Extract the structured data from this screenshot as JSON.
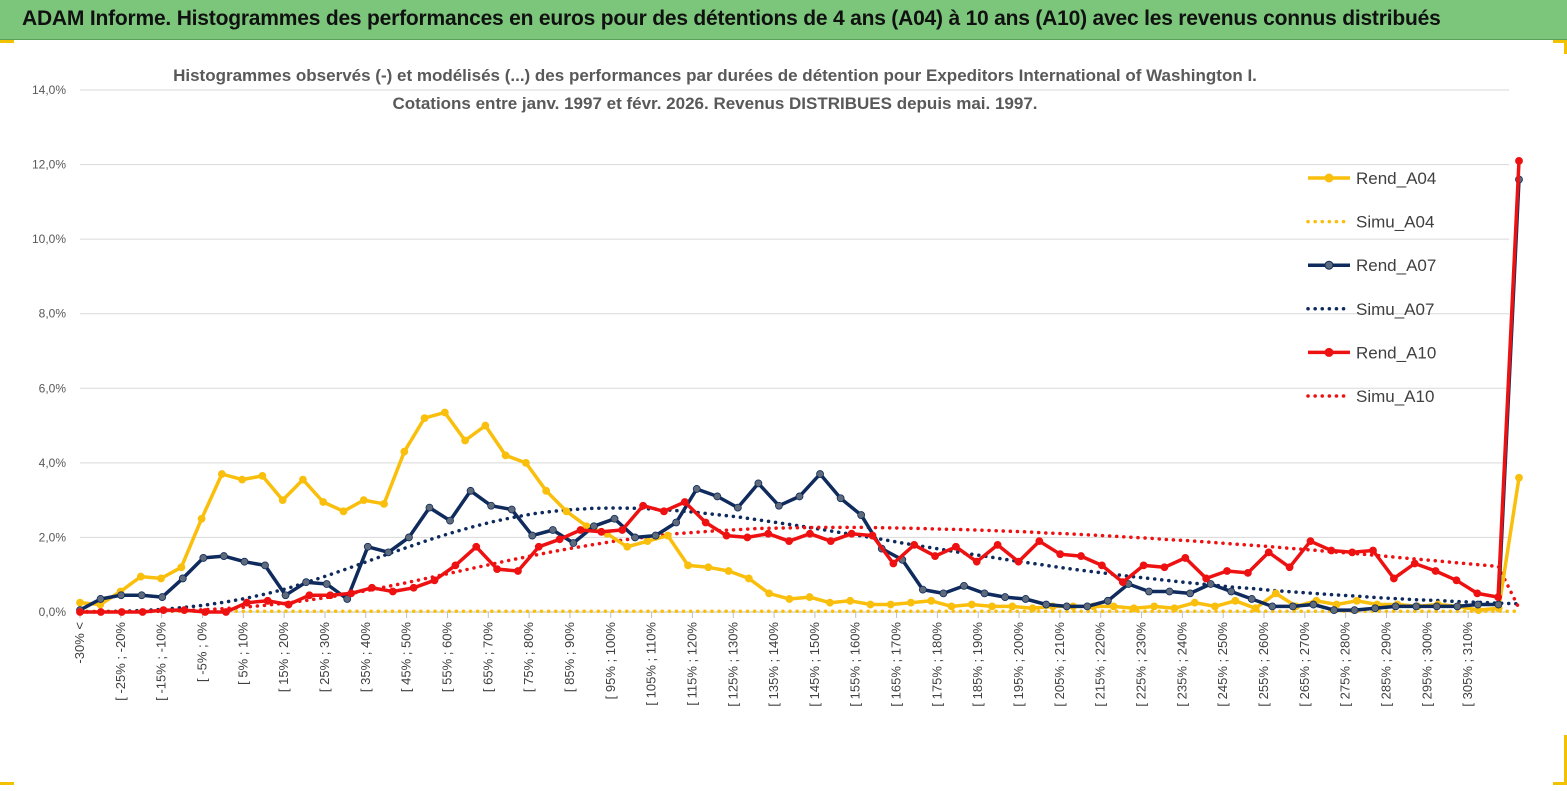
{
  "banner": {
    "title": "ADAM Informe. Histogrammes des performances en euros pour des détentions de 4 ans (A04) à 10 ans (A10) avec les revenus connus distribués"
  },
  "colors": {
    "banner_bg": "#7bc67b",
    "a04": "#f9bf0c",
    "a07": "#0f2a5c",
    "a10": "#ee1111",
    "marker_a07": "#5f6b7a"
  },
  "chart_data": {
    "type": "line",
    "title": "Histogrammes observés (-) et modélisés (...) des performances par durées de détention pour Expeditors International of Washington I.",
    "subtitle": "Cotations entre janv. 1997 et févr. 2026. Revenus DISTRIBUES depuis mai. 1997.",
    "xlabel": "",
    "ylabel": "",
    "ylim": [
      0,
      14
    ],
    "yticks": [
      "0,0%",
      "2,0%",
      "4,0%",
      "6,0%",
      "8,0%",
      "10,0%",
      "12,0%",
      "14,0%"
    ],
    "xtick_labels": [
      "-30% <",
      "[ -25% ; -20%",
      "[ -15% ; -10%",
      "[ -5% ; 0%",
      "[ 5% ; 10%",
      "[ 15% ; 20%",
      "[ 25% ; 30%",
      "[ 35% ; 40%",
      "[ 45% ; 50%",
      "[ 55% ; 60%",
      "[ 65% ; 70%",
      "[ 75% ; 80%",
      "[ 85% ; 90%",
      "[ 95% ; 100%",
      "[ 105% ; 110%",
      "[ 115% ; 120%",
      "[ 125% ; 130%",
      "[ 135% ; 140%",
      "[ 145% ; 150%",
      "[ 155% ; 160%",
      "[ 165% ; 170%",
      "[ 175% ; 180%",
      "[ 185% ; 190%",
      "[ 195% ; 200%",
      "[ 205% ; 210%",
      "[ 215% ; 220%",
      "[ 225% ; 230%",
      "[ 235% ; 240%",
      "[ 245% ; 250%",
      "[ 255% ; 260%",
      "[ 265% ; 270%",
      "[ 275% ; 280%",
      "[ 285% ; 290%",
      "[ 295% ; 300%",
      "[ 305% ; 310%"
    ],
    "legend_position": "right",
    "series": [
      {
        "name": "Rend_A04",
        "style": "solid-marker",
        "color": "#f9bf0c",
        "values": [
          0.25,
          0.2,
          0.55,
          0.95,
          0.9,
          1.2,
          2.5,
          3.7,
          3.55,
          3.65,
          3.0,
          3.55,
          2.95,
          2.7,
          3.0,
          2.9,
          4.3,
          5.2,
          5.35,
          4.6,
          5.0,
          4.2,
          4.0,
          3.25,
          2.7,
          2.3,
          2.1,
          1.75,
          1.9,
          2.05,
          1.25,
          1.2,
          1.1,
          0.9,
          0.5,
          0.35,
          0.4,
          0.25,
          0.3,
          0.2,
          0.2,
          0.25,
          0.3,
          0.15,
          0.2,
          0.15,
          0.15,
          0.1,
          0.15,
          0.15,
          0.15,
          0.15,
          0.1,
          0.15,
          0.1,
          0.25,
          0.15,
          0.3,
          0.1,
          0.5,
          0.15,
          0.3,
          0.2,
          0.3,
          0.2,
          0.2,
          0.15,
          0.2,
          0.15,
          0.05,
          0.1,
          3.6
        ]
      },
      {
        "name": "Simu_A04",
        "style": "dotted",
        "color": "#f9bf0c",
        "values": [
          0.02,
          0.02,
          0.02,
          0.02,
          0.02,
          0.02,
          0.02,
          0.02,
          0.02,
          0.02,
          0.02,
          0.02,
          0.02,
          0.02,
          0.02,
          0.02,
          0.02,
          0.02,
          0.02,
          0.02,
          0.02,
          0.02,
          0.02,
          0.02,
          0.02,
          0.02,
          0.02,
          0.02,
          0.02,
          0.02,
          0.02,
          0.02,
          0.02,
          0.02,
          0.02,
          0.02,
          0.02,
          0.02,
          0.02,
          0.02,
          0.02,
          0.02,
          0.02,
          0.02,
          0.02,
          0.02,
          0.02,
          0.02,
          0.02,
          0.02,
          0.02,
          0.02,
          0.02,
          0.02,
          0.02,
          0.02,
          0.02,
          0.02,
          0.02,
          0.02,
          0.02,
          0.02,
          0.02,
          0.02,
          0.02,
          0.02,
          0.02,
          0.02,
          0.02,
          0.02,
          0.02,
          0.02
        ]
      },
      {
        "name": "Rend_A07",
        "style": "solid-marker",
        "color": "#0f2a5c",
        "values": [
          0.05,
          0.35,
          0.45,
          0.45,
          0.4,
          0.9,
          1.45,
          1.5,
          1.35,
          1.25,
          0.45,
          0.8,
          0.75,
          0.35,
          1.75,
          1.6,
          2.0,
          2.8,
          2.45,
          3.25,
          2.85,
          2.75,
          2.05,
          2.2,
          1.85,
          2.3,
          2.5,
          2.0,
          2.05,
          2.4,
          3.3,
          3.1,
          2.8,
          3.45,
          2.85,
          3.1,
          3.7,
          3.05,
          2.6,
          1.7,
          1.4,
          0.6,
          0.5,
          0.7,
          0.5,
          0.4,
          0.35,
          0.2,
          0.15,
          0.15,
          0.3,
          0.75,
          0.55,
          0.55,
          0.5,
          0.75,
          0.55,
          0.35,
          0.15,
          0.15,
          0.2,
          0.05,
          0.05,
          0.1,
          0.15,
          0.15,
          0.15,
          0.15,
          0.2,
          0.2,
          11.6
        ]
      },
      {
        "name": "Simu_A07",
        "style": "dotted",
        "color": "#0f2a5c",
        "values": [
          0.0,
          0.01,
          0.02,
          0.04,
          0.07,
          0.12,
          0.18,
          0.26,
          0.36,
          0.48,
          0.62,
          0.79,
          0.97,
          1.16,
          1.36,
          1.56,
          1.75,
          1.94,
          2.11,
          2.27,
          2.41,
          2.53,
          2.63,
          2.7,
          2.75,
          2.78,
          2.79,
          2.78,
          2.76,
          2.72,
          2.67,
          2.61,
          2.55,
          2.47,
          2.39,
          2.31,
          2.22,
          2.13,
          2.04,
          1.95,
          1.85,
          1.76,
          1.67,
          1.58,
          1.5,
          1.41,
          1.33,
          1.25,
          1.17,
          1.1,
          1.03,
          0.96,
          0.9,
          0.84,
          0.78,
          0.73,
          0.67,
          0.63,
          0.58,
          0.54,
          0.5,
          0.46,
          0.43,
          0.39,
          0.36,
          0.33,
          0.31,
          0.28,
          0.26,
          0.24,
          0.22
        ]
      },
      {
        "name": "Rend_A10",
        "style": "solid-marker",
        "color": "#ee1111",
        "values": [
          0.0,
          0.0,
          0.0,
          0.0,
          0.05,
          0.05,
          0.0,
          0.0,
          0.25,
          0.3,
          0.2,
          0.45,
          0.45,
          0.5,
          0.65,
          0.55,
          0.65,
          0.85,
          1.25,
          1.75,
          1.15,
          1.1,
          1.75,
          1.95,
          2.2,
          2.15,
          2.2,
          2.85,
          2.7,
          2.95,
          2.4,
          2.05,
          2.0,
          2.1,
          1.9,
          2.1,
          1.9,
          2.1,
          2.05,
          1.3,
          1.8,
          1.5,
          1.75,
          1.35,
          1.8,
          1.35,
          1.9,
          1.55,
          1.5,
          1.25,
          0.8,
          1.25,
          1.2,
          1.45,
          0.9,
          1.1,
          1.05,
          1.6,
          1.2,
          1.9,
          1.65,
          1.6,
          1.65,
          0.9,
          1.3,
          1.1,
          0.85,
          0.5,
          0.4,
          12.1
        ]
      },
      {
        "name": "Simu_A10",
        "style": "dotted",
        "color": "#ee1111",
        "values": [
          0.0,
          0.0,
          0.01,
          0.01,
          0.02,
          0.04,
          0.06,
          0.09,
          0.13,
          0.18,
          0.24,
          0.31,
          0.39,
          0.48,
          0.58,
          0.69,
          0.8,
          0.92,
          1.04,
          1.16,
          1.28,
          1.4,
          1.51,
          1.62,
          1.72,
          1.81,
          1.9,
          1.97,
          2.04,
          2.1,
          2.14,
          2.18,
          2.21,
          2.24,
          2.25,
          2.26,
          2.27,
          2.27,
          2.27,
          2.26,
          2.25,
          2.24,
          2.22,
          2.21,
          2.19,
          2.17,
          2.15,
          2.12,
          2.1,
          2.07,
          2.04,
          2.01,
          1.98,
          1.94,
          1.91,
          1.87,
          1.83,
          1.79,
          1.75,
          1.7,
          1.66,
          1.61,
          1.57,
          1.52,
          1.47,
          1.42,
          1.37,
          1.32,
          1.27,
          1.22,
          0.1
        ]
      }
    ]
  }
}
